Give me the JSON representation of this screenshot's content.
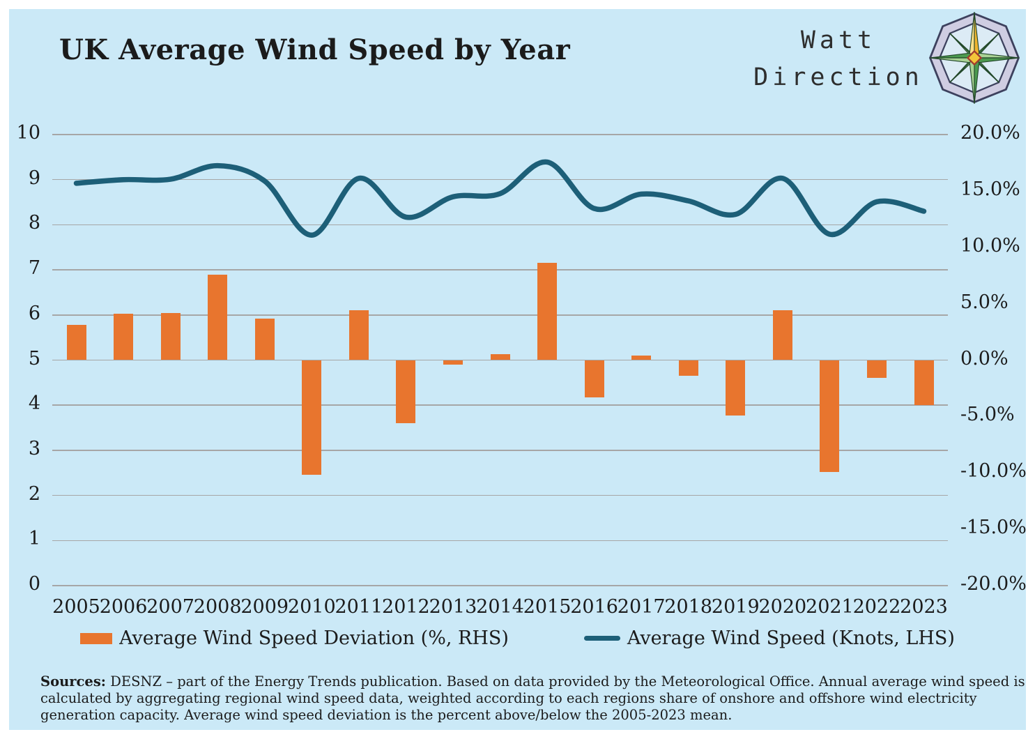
{
  "header": {
    "title": "UK Average Wind Speed by Year",
    "brand_line1": "Watt",
    "brand_line2": "Direction",
    "logo_icon": "compass-rose"
  },
  "chart_data": {
    "type": "combo-bar-line",
    "title": "UK Average Wind Speed by Year",
    "categories": [
      "2005",
      "2006",
      "2007",
      "2008",
      "2009",
      "2010",
      "2011",
      "2012",
      "2013",
      "2014",
      "2015",
      "2016",
      "2017",
      "2018",
      "2019",
      "2020",
      "2021",
      "2022",
      "2023"
    ],
    "series": [
      {
        "name": "Average Wind Speed Deviation (%, RHS)",
        "type": "bar",
        "axis": "right",
        "unit": "%",
        "values": [
          3.1,
          4.1,
          4.2,
          7.6,
          3.7,
          -10.2,
          4.4,
          -5.6,
          -0.4,
          0.5,
          8.6,
          -3.3,
          0.4,
          -1.4,
          -4.9,
          4.4,
          -9.9,
          -1.6,
          -4.0
        ]
      },
      {
        "name": "Average Wind Speed (Knots, LHS)",
        "type": "line",
        "axis": "left",
        "unit": "knots",
        "smoothed": true,
        "values": [
          8.92,
          9.0,
          9.01,
          9.31,
          8.97,
          7.77,
          9.03,
          8.17,
          8.62,
          8.69,
          9.39,
          8.36,
          8.68,
          8.53,
          8.23,
          9.03,
          7.79,
          8.51,
          8.3
        ]
      }
    ],
    "left_axis": {
      "min": 0,
      "max": 10,
      "step": 1,
      "labels": [
        "10",
        "9",
        "8",
        "7",
        "6",
        "5",
        "4",
        "3",
        "2",
        "1",
        "0"
      ]
    },
    "right_axis": {
      "min": -20,
      "max": 20,
      "step": 5,
      "labels": [
        "20.0%",
        "15.0%",
        "10.0%",
        "5.0%",
        "0.0%",
        "-5.0%",
        "-10.0%",
        "-15.0%",
        "-20.0%"
      ]
    },
    "grid": true,
    "legend_position": "bottom"
  },
  "legend": [
    {
      "label": "Average Wind Speed Deviation (%, RHS)",
      "swatch": "bar"
    },
    {
      "label": "Average Wind Speed (Knots, LHS)",
      "swatch": "line"
    }
  ],
  "footer": {
    "sources_label": "Sources:",
    "lines": [
      "DESNZ – part of the Energy Trends publication. Based on data provided by the Meteorological Office. Annual average wind speed is",
      "calculated by aggregating regional wind speed data, weighted according to each regions share of onshore and offshore wind electricity",
      "generation capacity.  Average wind speed deviation is the percent above/below the 2005-2023 mean."
    ]
  },
  "colors": {
    "background": "#cbe9f7",
    "bar": "#e8752e",
    "line": "#1d5f78",
    "grid": "#a6a6a6",
    "text": "#1b1b1b"
  }
}
